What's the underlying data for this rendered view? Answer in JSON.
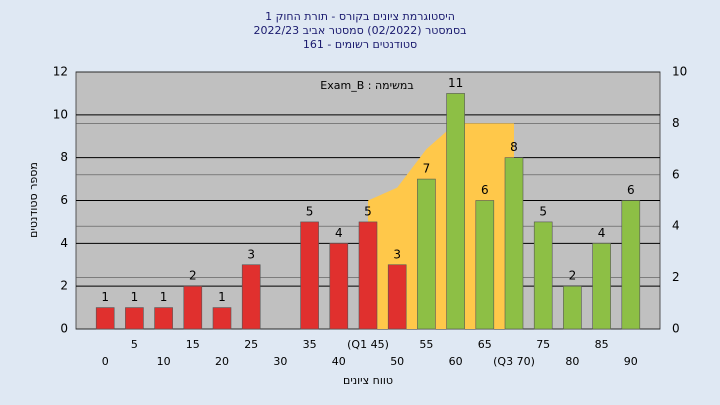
{
  "chart_data": {
    "type": "bar",
    "title": "היסטוגרמת ציונים בקורס - תורת החוק 1",
    "subtitle": "בסמסטר  (02/2022)  סמסטר אביב 2022/23",
    "subtitle2": "סטודנטים רשומים - 161",
    "annotation": "במשימה : Exam_B",
    "x_label": "טווח ציונים",
    "y_label": "מספר סטודנטים",
    "categories": [
      "0",
      "5",
      "10",
      "15",
      "20",
      "25",
      "30",
      "35",
      "40",
      "(Q1 45)",
      "50",
      "55",
      "60",
      "65",
      "(Q3 70)",
      "75",
      "80",
      "85",
      "90"
    ],
    "values": [
      1,
      1,
      1,
      2,
      1,
      3,
      0,
      5,
      4,
      5,
      3,
      7,
      11,
      6,
      8,
      5,
      2,
      4,
      6
    ],
    "bar_colors": [
      "#e0302e",
      "#e0302e",
      "#e0302e",
      "#e0302e",
      "#e0302e",
      "#e0302e",
      "#e0302e",
      "#e0302e",
      "#e0302e",
      "#e0302e",
      "#e0302e",
      "#8dbf45",
      "#8dbf45",
      "#8dbf45",
      "#8dbf45",
      "#8dbf45",
      "#8dbf45",
      "#8dbf45",
      "#8dbf45"
    ],
    "curve": {
      "axis": "y2",
      "color": "#ffc84a",
      "values": [
        null,
        null,
        null,
        null,
        null,
        null,
        null,
        null,
        null,
        5,
        5.5,
        7,
        8,
        8,
        8,
        null,
        null,
        null,
        null
      ]
    },
    "ylim": [
      0,
      12
    ],
    "yticks": [
      0,
      2,
      4,
      6,
      8,
      10,
      12
    ],
    "y2lim": [
      0,
      10
    ],
    "y2ticks": [
      0,
      2,
      4,
      6,
      8,
      10
    ],
    "grid": true
  }
}
